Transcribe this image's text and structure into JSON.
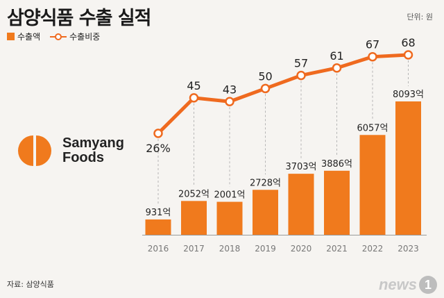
{
  "title": "삼양식품 수출 실적",
  "unit_label": "단위: 원",
  "legend": {
    "bar_label": "수출액",
    "line_label": "수출비중"
  },
  "colors": {
    "bar": "#f07a1d",
    "line": "#ef6a1f",
    "axis_text": "#777777",
    "background": "#f6f4f1"
  },
  "logo": {
    "line1": "Samyang",
    "line2": "Foods"
  },
  "source": "자료: 삼양식품",
  "watermark": {
    "text": "news",
    "badge": "1"
  },
  "chart_data": {
    "type": "bar",
    "title": "삼양식품 수출 실적",
    "xlabel": "",
    "ylabel": "",
    "categories": [
      "2016",
      "2017",
      "2018",
      "2019",
      "2020",
      "2021",
      "2022",
      "2023"
    ],
    "series": [
      {
        "name": "수출액",
        "type": "bar",
        "values": [
          931,
          2052,
          2001,
          2728,
          3703,
          3886,
          6057,
          8093
        ],
        "labels": [
          "931억",
          "2052억",
          "2001억",
          "2728억",
          "3703억",
          "3886억",
          "6057억",
          "8093억"
        ]
      },
      {
        "name": "수출비중",
        "type": "line",
        "values": [
          26,
          45,
          43,
          50,
          57,
          61,
          67,
          68
        ],
        "labels": [
          "26%",
          "45",
          "43",
          "50",
          "57",
          "61",
          "67",
          "68"
        ]
      }
    ],
    "ylim": [
      0,
      8093
    ],
    "legend_position": "top-left"
  }
}
